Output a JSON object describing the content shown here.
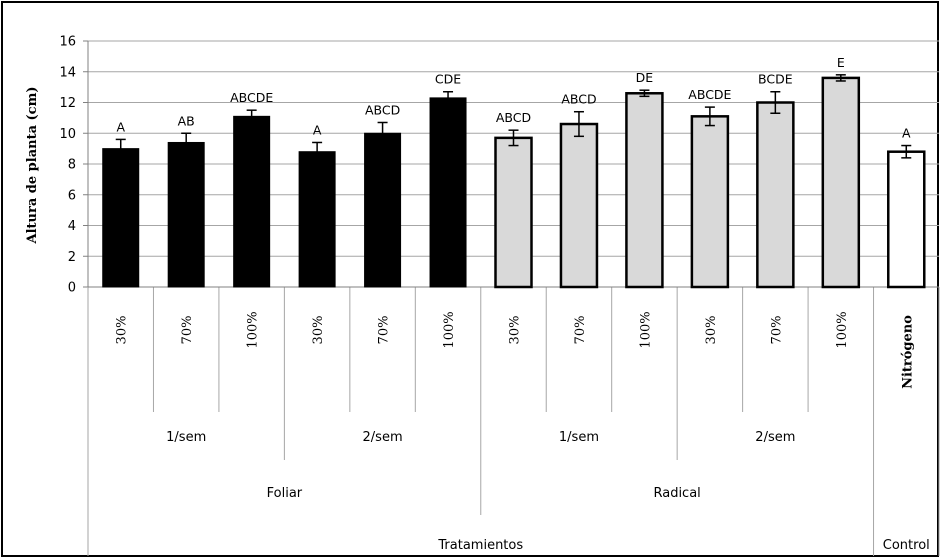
{
  "chart_data": {
    "type": "bar",
    "ylabel": "Altura de planta (cm)",
    "ylim": [
      0,
      16
    ],
    "yticks": [
      0,
      2,
      4,
      6,
      8,
      10,
      12,
      14,
      16
    ],
    "grid": true,
    "colors": {
      "foliar": "#000000",
      "radical": "#d9d9d9",
      "control": "#ffffff",
      "grid": "#a6a6a6"
    },
    "bars": [
      {
        "category": "30%",
        "value": 9.0,
        "error": 0.6,
        "label": "A",
        "group": "foliar"
      },
      {
        "category": "70%",
        "value": 9.4,
        "error": 0.6,
        "label": "AB",
        "group": "foliar"
      },
      {
        "category": "100%",
        "value": 11.1,
        "error": 0.4,
        "label": "ABCDE",
        "group": "foliar"
      },
      {
        "category": "30%",
        "value": 8.8,
        "error": 0.6,
        "label": "A",
        "group": "foliar"
      },
      {
        "category": "70%",
        "value": 10.0,
        "error": 0.7,
        "label": "ABCD",
        "group": "foliar"
      },
      {
        "category": "100%",
        "value": 12.3,
        "error": 0.4,
        "label": "CDE",
        "group": "foliar"
      },
      {
        "category": "30%",
        "value": 9.7,
        "error": 0.5,
        "label": "ABCD",
        "group": "radical"
      },
      {
        "category": "70%",
        "value": 10.6,
        "error": 0.8,
        "label": "ABCD",
        "group": "radical"
      },
      {
        "category": "100%",
        "value": 12.6,
        "error": 0.2,
        "label": "DE",
        "group": "radical"
      },
      {
        "category": "30%",
        "value": 11.1,
        "error": 0.6,
        "label": "ABCDE",
        "group": "radical"
      },
      {
        "category": "70%",
        "value": 12.0,
        "error": 0.7,
        "label": "BCDE",
        "group": "radical"
      },
      {
        "category": "100%",
        "value": 13.6,
        "error": 0.2,
        "label": "E",
        "group": "radical"
      },
      {
        "category": "Nitrógeno",
        "value": 8.8,
        "error": 0.4,
        "label": "A",
        "group": "control"
      }
    ],
    "level1": [
      "1/sem",
      "2/sem",
      "1/sem",
      "2/sem"
    ],
    "level2": [
      "Foliar",
      "Radical"
    ],
    "level3": [
      "Tratamientos",
      "Control"
    ]
  }
}
